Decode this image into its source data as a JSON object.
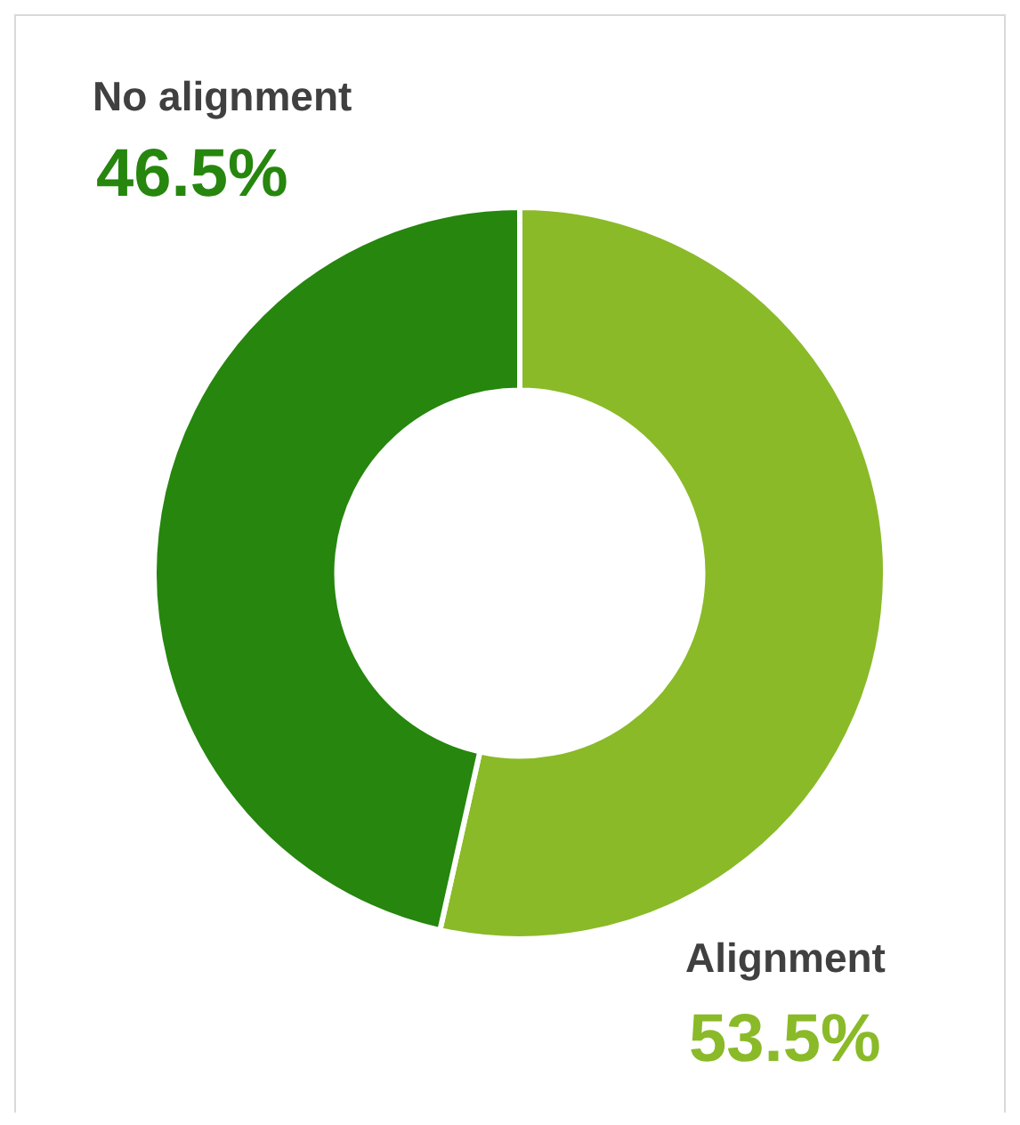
{
  "chart_data": {
    "type": "donut",
    "categories": [
      "Alignment",
      "No alignment"
    ],
    "values": [
      53.5,
      46.5
    ],
    "colors": [
      "#8aba28",
      "#26860e"
    ],
    "value_labels": [
      "53.5%",
      "46.5%"
    ],
    "legend": false
  }
}
